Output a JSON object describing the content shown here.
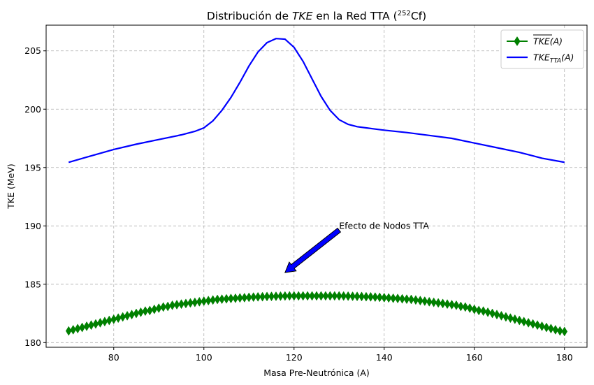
{
  "chart_data": {
    "type": "line",
    "title": "Distribución de TKE en la Red TTA (252Cf)",
    "title_parts": {
      "prefix": "Distribución de ",
      "italic": "TKE",
      "middle": " en la Red TTA (",
      "superscript": "252",
      "element": "Cf",
      "suffix": ")"
    },
    "xlabel": "Masa Pre-Neutrónica (A)",
    "ylabel": "TKE (MeV)",
    "xlim": [
      65,
      185
    ],
    "ylim": [
      179.6,
      207.2
    ],
    "xticks": [
      80,
      100,
      120,
      140,
      160,
      180
    ],
    "yticks": [
      180,
      185,
      190,
      195,
      200,
      205
    ],
    "grid": true,
    "legend_position": "top-right",
    "series": [
      {
        "name": "TKE(A) mean",
        "legend_main": "TKE",
        "legend_sub": "(A)",
        "legend_overline": true,
        "color": "#008000",
        "style": "line-diamond-markers",
        "x_start": 70,
        "x_end": 180,
        "x_step": 1,
        "y": [
          181.0,
          181.1,
          181.2,
          181.3,
          181.4,
          181.5,
          181.6,
          181.7,
          181.8,
          181.9,
          182.0,
          182.1,
          182.2,
          182.3,
          182.4,
          182.5,
          182.6,
          182.7,
          182.75,
          182.85,
          182.95,
          183.05,
          183.1,
          183.2,
          183.25,
          183.3,
          183.35,
          183.4,
          183.45,
          183.5,
          183.55,
          183.6,
          183.65,
          183.7,
          183.72,
          183.75,
          183.78,
          183.8,
          183.83,
          183.85,
          183.88,
          183.9,
          183.92,
          183.93,
          183.95,
          183.96,
          183.97,
          183.98,
          183.99,
          184.0,
          184.0,
          184.0,
          184.0,
          184.0,
          184.0,
          184.0,
          184.0,
          184.0,
          184.0,
          184.0,
          184.0,
          183.99,
          183.98,
          183.97,
          183.96,
          183.95,
          183.93,
          183.92,
          183.9,
          183.88,
          183.85,
          183.83,
          183.8,
          183.78,
          183.75,
          183.72,
          183.7,
          183.65,
          183.6,
          183.55,
          183.5,
          183.45,
          183.4,
          183.35,
          183.3,
          183.25,
          183.2,
          183.1,
          183.05,
          182.95,
          182.85,
          182.75,
          182.7,
          182.6,
          182.5,
          182.4,
          182.3,
          182.2,
          182.1,
          182.0,
          181.9,
          181.8,
          181.7,
          181.6,
          181.5,
          181.4,
          181.3,
          181.2,
          181.1,
          181.0,
          180.95
        ]
      },
      {
        "name": "TKE_TTA(A)",
        "legend_main": "TKE",
        "legend_sub": "TTA",
        "legend_tail": "(A)",
        "color": "#0000ff",
        "style": "line",
        "x": [
          70,
          75,
          80,
          85,
          90,
          95,
          98,
          100,
          102,
          104,
          106,
          108,
          110,
          112,
          114,
          116,
          118,
          120,
          122,
          124,
          126,
          128,
          130,
          132,
          134,
          136,
          138,
          140,
          145,
          150,
          155,
          160,
          165,
          170,
          175,
          180
        ],
        "y": [
          195.45,
          196.0,
          196.55,
          197.0,
          197.4,
          197.8,
          198.1,
          198.4,
          199.0,
          199.9,
          201.0,
          202.3,
          203.7,
          204.9,
          205.7,
          206.05,
          206.0,
          205.3,
          204.1,
          202.6,
          201.1,
          199.9,
          199.1,
          198.7,
          198.5,
          198.4,
          198.3,
          198.2,
          198.0,
          197.75,
          197.5,
          197.1,
          196.7,
          196.3,
          195.8,
          195.45
        ]
      }
    ],
    "annotation": {
      "text": "Efecto de Nodos TTA",
      "text_x": 130,
      "text_y": 190,
      "arrow_to_x": 118,
      "arrow_to_y": 186,
      "color": "#0000ff"
    }
  }
}
